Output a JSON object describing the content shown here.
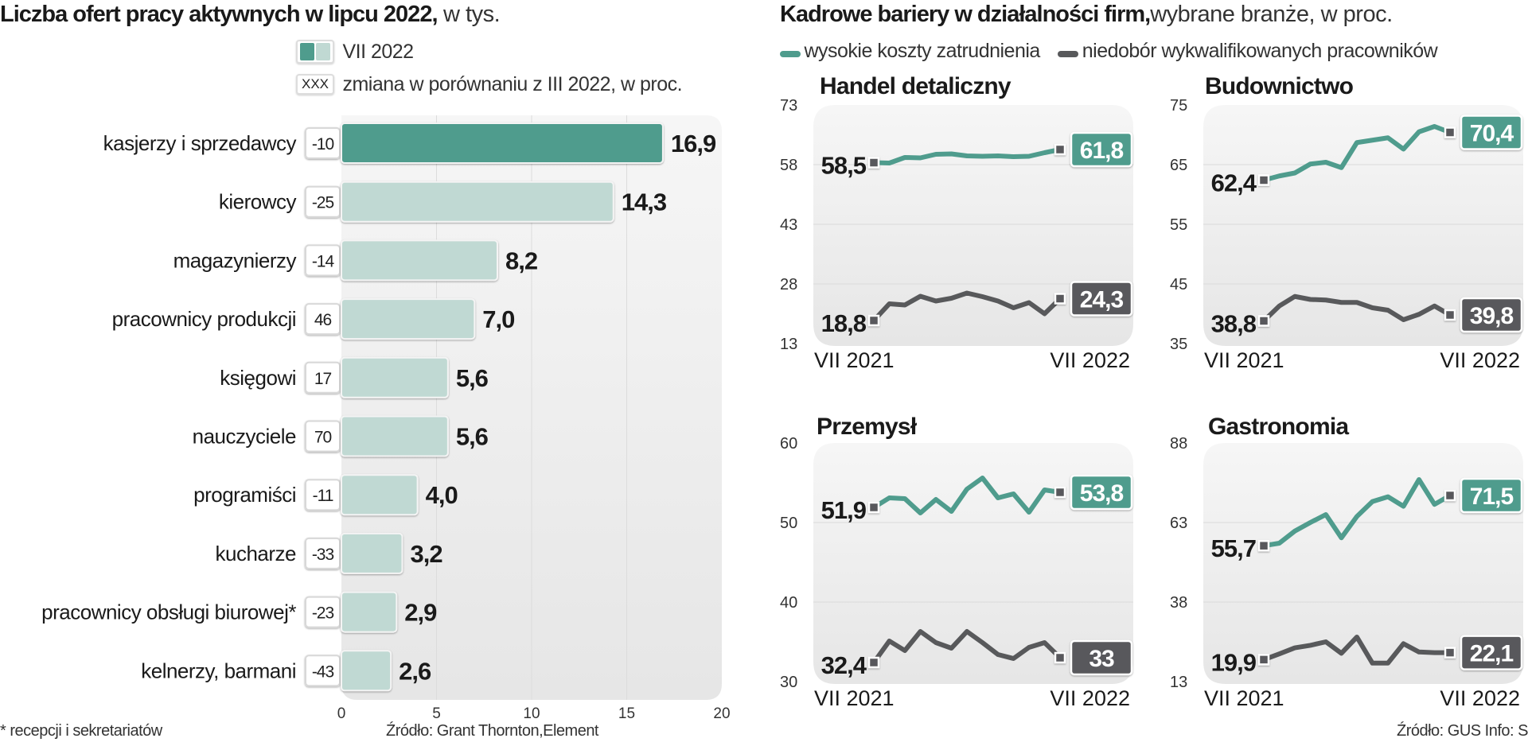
{
  "left": {
    "title_bold": "Liczba ofert pracy aktywnych w lipcu 2022,",
    "title_light": " w tys.",
    "legend_bar_label": "VII 2022",
    "legend_box_sample": "XXX",
    "legend_box_label": "zmiana w porównaniu z III 2022, w proc.",
    "footnote": "* recepcji i sekretariatów",
    "source": "Źródło: Grant Thornton,Element"
  },
  "right": {
    "title_bold": "Kadrowe bariery w działalności  firm,",
    "title_light": "wybrane branże, w proc.",
    "legend": [
      {
        "label": "wysokie koszty zatrudnienia",
        "color": "#4f9c8d"
      },
      {
        "label": "niedobór wykwalifikowanych pracowników",
        "color": "#58595b"
      }
    ],
    "source": "Źródło: GUS   Info: S"
  },
  "colors": {
    "teal": "#4f9c8d",
    "teal_light": "#c0d9d3",
    "grey": "#58595b",
    "panel_bg": "#ececec"
  },
  "chart_data": [
    {
      "type": "bar",
      "orientation": "horizontal",
      "title": "Liczba ofert pracy aktywnych w lipcu 2022, w tys.",
      "xlabel": "",
      "ylabel": "",
      "xlim": [
        0,
        20
      ],
      "x_ticks": [
        "0",
        "5",
        "10",
        "15",
        "20"
      ],
      "grid": true,
      "categories": [
        "kasjerzy i sprzedawcy",
        "kierowcy",
        "magazynierzy",
        "pracownicy produkcji",
        "księgowi",
        "nauczyciele",
        "programiści",
        "kucharze",
        "pracownicy  obsługi  biurowej*",
        "kelnerzy, barmani"
      ],
      "values": [
        16.9,
        14.3,
        8.2,
        7.0,
        5.6,
        5.6,
        4.0,
        3.2,
        2.9,
        2.6
      ],
      "value_labels": [
        "16,9",
        "14,3",
        "8,2",
        "7,0",
        "5,6",
        "5,6",
        "4,0",
        "3,2",
        "2,9",
        "2,6"
      ],
      "change_vs_III_2022_pct": [
        "-10",
        "-25",
        "-14",
        "46",
        "17",
        "70",
        "-11",
        "-33",
        "-23",
        "-43"
      ],
      "highlight_index": 0
    },
    {
      "type": "line",
      "title": "Handel detaliczny",
      "x_start_label": "VII 2021",
      "x_end_label": "VII 2022",
      "ylim": [
        13,
        73
      ],
      "y_ticks": [
        "73",
        "58",
        "43",
        "28",
        "13"
      ],
      "grid": true,
      "series": [
        {
          "name": "wysokie koszty zatrudnienia",
          "values": [
            58.5,
            58.4,
            59.8,
            59.7,
            60.6,
            60.7,
            60.2,
            60.1,
            60.2,
            60.0,
            60.1,
            61.0,
            61.8
          ],
          "start_label": "58,5",
          "end_label": "61,8"
        },
        {
          "name": "niedobór wykwalifikowanych pracowników",
          "values": [
            18.8,
            23.0,
            22.7,
            24.9,
            23.7,
            24.4,
            25.7,
            24.8,
            23.7,
            22.0,
            23.3,
            20.5,
            24.3
          ],
          "start_label": "18,8",
          "end_label": "24,3"
        }
      ]
    },
    {
      "type": "line",
      "title": "Budownictwo",
      "x_start_label": "VII 2021",
      "x_end_label": "VII 2022",
      "ylim": [
        35,
        75
      ],
      "y_ticks": [
        "75",
        "65",
        "55",
        "45",
        "35"
      ],
      "grid": true,
      "series": [
        {
          "name": "wysokie koszty zatrudnienia",
          "values": [
            62.4,
            63.1,
            63.6,
            65.1,
            65.4,
            64.5,
            68.7,
            69.1,
            69.5,
            67.6,
            70.5,
            71.4,
            70.4
          ],
          "start_label": "62,4",
          "end_label": "70,4"
        },
        {
          "name": "niedobór wykwalifikowanych pracowników",
          "values": [
            38.8,
            41.3,
            42.9,
            42.4,
            42.3,
            41.9,
            41.9,
            41.0,
            40.6,
            39.0,
            39.9,
            41.3,
            39.8
          ],
          "start_label": "38,8",
          "end_label": "39,8"
        }
      ]
    },
    {
      "type": "line",
      "title": "Przemysł",
      "x_start_label": "VII 2021",
      "x_end_label": "VII 2022",
      "ylim": [
        30,
        60
      ],
      "y_ticks": [
        "60",
        "50",
        "40",
        "30"
      ],
      "grid": true,
      "series": [
        {
          "name": "wysokie koszty zatrudnienia",
          "values": [
            51.9,
            53.1,
            53.0,
            51.2,
            52.9,
            51.4,
            54.2,
            55.6,
            53.1,
            53.6,
            51.3,
            54.1,
            53.8
          ],
          "start_label": "51,9",
          "end_label": "53,8"
        },
        {
          "name": "niedobór wykwalifikowanych pracowników",
          "values": [
            32.4,
            35.1,
            33.9,
            36.3,
            34.9,
            34.2,
            36.3,
            34.9,
            33.4,
            32.9,
            34.3,
            34.9,
            33.0
          ],
          "start_label": "32,4",
          "end_label": "33"
        }
      ]
    },
    {
      "type": "line",
      "title": "Gastronomia",
      "x_start_label": "VII 2021",
      "x_end_label": "VII 2022",
      "ylim": [
        13,
        88
      ],
      "y_ticks": [
        "88",
        "63",
        "38",
        "13"
      ],
      "grid": true,
      "series": [
        {
          "name": "wysokie koszty zatrudnienia",
          "values": [
            55.7,
            56.5,
            60.3,
            63.0,
            65.5,
            58.2,
            64.9,
            69.6,
            71.1,
            68.1,
            76.5,
            68.7,
            71.5
          ],
          "start_label": "55,7",
          "end_label": "71,5"
        },
        {
          "name": "niedobór wykwalifikowanych pracowników",
          "values": [
            19.9,
            21.7,
            23.6,
            24.4,
            25.5,
            21.9,
            27.0,
            18.8,
            18.8,
            24.9,
            22.3,
            22.1,
            22.1
          ],
          "start_label": "19,9",
          "end_label": "22,1"
        }
      ]
    }
  ]
}
